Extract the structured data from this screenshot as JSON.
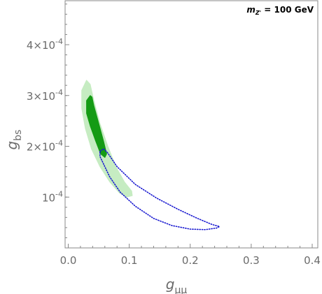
{
  "chart_data": {
    "type": "scatter",
    "title": "",
    "xlim": [
      0.0,
      0.4
    ],
    "ylim": [
      0.0,
      0.0005
    ],
    "xlabel": {
      "main": "g",
      "sub": "μμ"
    },
    "ylabel": {
      "main": "g",
      "sub": "bs"
    },
    "x_ticks": [
      {
        "value": 0.0,
        "label": "0.0"
      },
      {
        "value": 0.1,
        "label": "0.1"
      },
      {
        "value": 0.2,
        "label": "0.2"
      },
      {
        "value": 0.3,
        "label": "0.3"
      },
      {
        "value": 0.4,
        "label": "0.4"
      }
    ],
    "y_ticks": [
      {
        "value": 0.0001,
        "mant": "10",
        "exp": "-4"
      },
      {
        "value": 0.0002,
        "mant": "2×10",
        "exp": "-4"
      },
      {
        "value": 0.0003,
        "mant": "3×10",
        "exp": "-4"
      },
      {
        "value": 0.0004,
        "mant": "4×10",
        "exp": "-4"
      }
    ],
    "annotation": {
      "prefix": "m",
      "sub": "Z'",
      "text": " = 100 GeV"
    },
    "grid": false,
    "regions": [
      {
        "name": "",
        "style": "fill",
        "color": "#c6ecc2",
        "points": [
          [
            0.03,
            0.00033
          ],
          [
            0.022,
            0.00031
          ],
          [
            0.022,
            0.000275
          ],
          [
            0.028,
            0.000235
          ],
          [
            0.038,
            0.000195
          ],
          [
            0.052,
            0.00016
          ],
          [
            0.068,
            0.00013
          ],
          [
            0.084,
            0.000108
          ],
          [
            0.096,
            0.0001
          ],
          [
            0.105,
            0.000103
          ],
          [
            0.104,
            0.000112
          ],
          [
            0.092,
            0.00013
          ],
          [
            0.078,
            0.00016
          ],
          [
            0.065,
            0.0002
          ],
          [
            0.052,
            0.000245
          ],
          [
            0.042,
            0.00029
          ],
          [
            0.036,
            0.000322
          ]
        ]
      },
      {
        "name": "",
        "style": "fill",
        "color": "#149b14",
        "points": [
          [
            0.036,
            0.0003
          ],
          [
            0.03,
            0.00029
          ],
          [
            0.03,
            0.000265
          ],
          [
            0.036,
            0.00024
          ],
          [
            0.045,
            0.00021
          ],
          [
            0.053,
            0.000185
          ],
          [
            0.06,
            0.000178
          ],
          [
            0.063,
            0.000185
          ],
          [
            0.058,
            0.00021
          ],
          [
            0.05,
            0.000245
          ],
          [
            0.042,
            0.00028
          ],
          [
            0.039,
            0.000297
          ]
        ]
      },
      {
        "name": "",
        "style": "dotted",
        "color": "#1a1ad0",
        "points": [
          [
            0.052,
            0.00019
          ],
          [
            0.058,
            0.000195
          ],
          [
            0.064,
            0.000188
          ],
          [
            0.08,
            0.00016
          ],
          [
            0.11,
            0.000125
          ],
          [
            0.145,
            9.8e-05
          ],
          [
            0.18,
            7.6e-05
          ],
          [
            0.212,
            5.8e-05
          ],
          [
            0.236,
            4.6e-05
          ],
          [
            0.248,
            4.2e-05
          ],
          [
            0.243,
            3.9e-05
          ],
          [
            0.225,
            3.6e-05
          ],
          [
            0.2,
            3.7e-05
          ],
          [
            0.17,
            4.4e-05
          ],
          [
            0.14,
            5.8e-05
          ],
          [
            0.11,
            8.2e-05
          ],
          [
            0.085,
            0.00011
          ],
          [
            0.068,
            0.00014
          ],
          [
            0.058,
            0.000165
          ],
          [
            0.052,
            0.00018
          ]
        ]
      }
    ]
  }
}
